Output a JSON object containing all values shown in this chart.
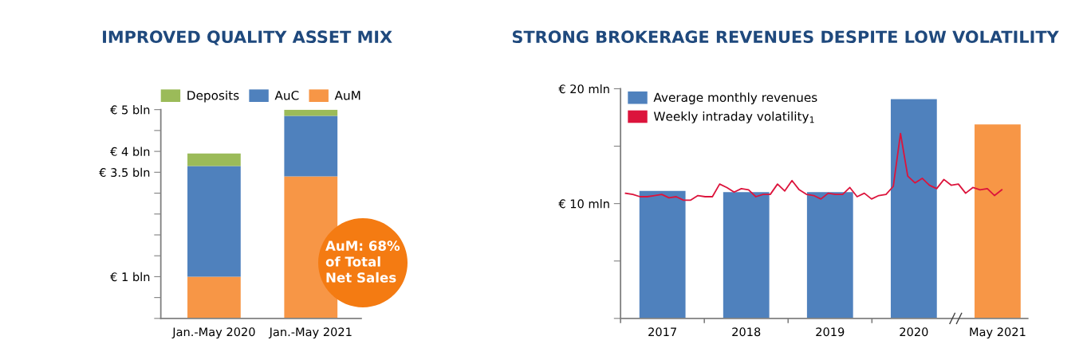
{
  "chart_data": [
    {
      "type": "bar",
      "title": "IMPROVED QUALITY ASSET MIX",
      "stacked": true,
      "legend": "top",
      "grid": false,
      "categories": [
        "Jan.-May 2020",
        "Jan.-May 2021"
      ],
      "series": [
        {
          "name": "AuM",
          "color": "#f79646",
          "values": [
            1.0,
            3.4
          ]
        },
        {
          "name": "AuC",
          "color": "#4f81bd",
          "values": [
            2.65,
            1.45
          ]
        },
        {
          "name": "Deposits",
          "color": "#9bbb59",
          "values": [
            0.3,
            0.15
          ]
        }
      ],
      "ylim": [
        0,
        5
      ],
      "yticks": [
        {
          "value": 0,
          "label": null
        },
        {
          "value": 0.5,
          "label": null
        },
        {
          "value": 1,
          "label": "€ 1 bln"
        },
        {
          "value": 1.5,
          "label": null
        },
        {
          "value": 2,
          "label": null
        },
        {
          "value": 2.5,
          "label": null
        },
        {
          "value": 3,
          "label": null
        },
        {
          "value": 3.5,
          "label": "€ 3.5 bln"
        },
        {
          "value": 4,
          "label": "€ 4 bln"
        },
        {
          "value": 4.5,
          "label": null
        },
        {
          "value": 5,
          "label": "€ 5 bln"
        }
      ],
      "annotations": [
        "AuM: 68%\nof Total\nNet Sales"
      ]
    },
    {
      "type": "bar",
      "title": "STRONG BROKERAGE REVENUES DESPITE LOW VOLATILITY",
      "legend": "top left",
      "grid": false,
      "categories": [
        "2017",
        "2018",
        "2019",
        "2020",
        "May 2021"
      ],
      "series": [
        {
          "name": "Average monthly revenues",
          "colors": [
            "#4f81bd",
            "#4f81bd",
            "#4f81bd",
            "#4f81bd",
            "#f79646"
          ],
          "color": "#4f81bd",
          "values": [
            11.1,
            11.0,
            11.0,
            19.1,
            16.9
          ]
        }
      ],
      "ylim": [
        0,
        20
      ],
      "yticks": [
        {
          "value": 0,
          "label": null
        },
        {
          "value": 5,
          "label": null
        },
        {
          "value": 10,
          "label": "€ 10 mln"
        },
        {
          "value": 15,
          "label": null
        },
        {
          "value": 20,
          "label": "€ 20 mln"
        }
      ]
    },
    {
      "type": "line",
      "legend": "top left",
      "grid": false,
      "tick_labels": false,
      "marker": "none",
      "line_style": "solid",
      "categories": [
        null,
        null,
        null,
        null,
        null,
        null,
        null,
        null,
        null,
        null,
        null,
        null,
        null,
        null,
        null,
        null,
        null,
        null,
        null,
        null,
        null,
        null,
        null,
        null,
        null,
        null,
        null,
        null,
        null,
        null,
        null,
        null,
        null,
        null,
        null,
        null,
        null,
        null,
        null,
        null,
        null,
        null,
        null,
        null,
        null,
        null,
        null,
        null,
        null,
        null,
        null,
        null,
        null
      ],
      "series": [
        {
          "name": "Weekly intraday volatility$_{1}$",
          "color": "#dc143c",
          "values": [
            10.9,
            10.8,
            10.6,
            10.6,
            10.7,
            10.8,
            10.5,
            10.6,
            10.3,
            10.3,
            10.7,
            10.6,
            10.6,
            11.7,
            11.4,
            11.0,
            11.3,
            11.2,
            10.6,
            10.8,
            10.8,
            11.7,
            11.1,
            12.0,
            11.2,
            10.8,
            10.7,
            10.4,
            10.9,
            10.8,
            10.8,
            11.4,
            10.6,
            10.9,
            10.4,
            10.7,
            10.8,
            11.5,
            16.1,
            12.4,
            11.8,
            12.2,
            11.6,
            11.3,
            12.1,
            11.6,
            11.7,
            10.9,
            11.4,
            11.2,
            11.3,
            10.7,
            11.2
          ]
        }
      ],
      "ylim": [
        0,
        20
      ]
    }
  ]
}
